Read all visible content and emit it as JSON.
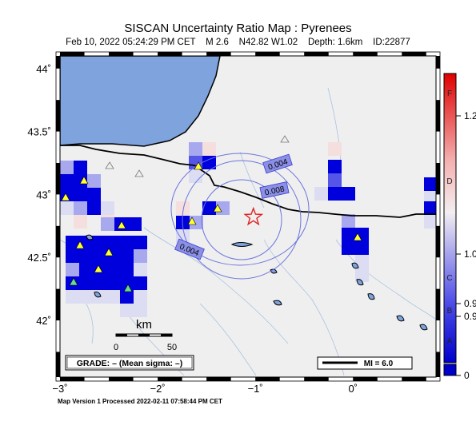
{
  "header": {
    "title": "SISCAN Uncertainty Ratio Map : Pyrenees",
    "subtitle": "Feb 10, 2022 05:24:29 PM CET    M 2.6    N42.82 W1.02    Depth: 1.6km    ID:22877"
  },
  "map": {
    "lon_range": [
      -3.0,
      0.85
    ],
    "lat_range": [
      41.55,
      44.1
    ],
    "lat_ticks": [
      {
        "value": 44,
        "label": "44˚"
      },
      {
        "value": 43.5,
        "label": "43.5˚"
      },
      {
        "value": 43,
        "label": "43˚"
      },
      {
        "value": 42.5,
        "label": "42.5˚"
      },
      {
        "value": 42,
        "label": "42˚"
      }
    ],
    "lon_ticks": [
      {
        "value": -3,
        "label": "−3˚"
      },
      {
        "value": -2,
        "label": "−2˚"
      },
      {
        "value": -1,
        "label": "−1˚"
      },
      {
        "value": 0,
        "label": "0˚"
      }
    ],
    "epicenter": {
      "lon": -1.02,
      "lat": 42.82
    },
    "contours": [
      {
        "label": "0.004"
      },
      {
        "label": "0.008"
      },
      {
        "label": "0.004"
      }
    ],
    "scale_bar": {
      "unit": "km",
      "tick_start": "0",
      "tick_end": "50"
    },
    "grade_text": "GRADE: – (Mean sigma: –)",
    "mi_legend": "MI = 6.0"
  },
  "colorbar": {
    "letters": [
      "F",
      "D",
      "C",
      "B",
      "A"
    ],
    "values": [
      "1.2",
      "1.0",
      "0.9",
      "0.9",
      "0"
    ]
  },
  "footer": {
    "text": "Map Version 1 Processed 2022-02-11 07:58:44 PM CET"
  }
}
